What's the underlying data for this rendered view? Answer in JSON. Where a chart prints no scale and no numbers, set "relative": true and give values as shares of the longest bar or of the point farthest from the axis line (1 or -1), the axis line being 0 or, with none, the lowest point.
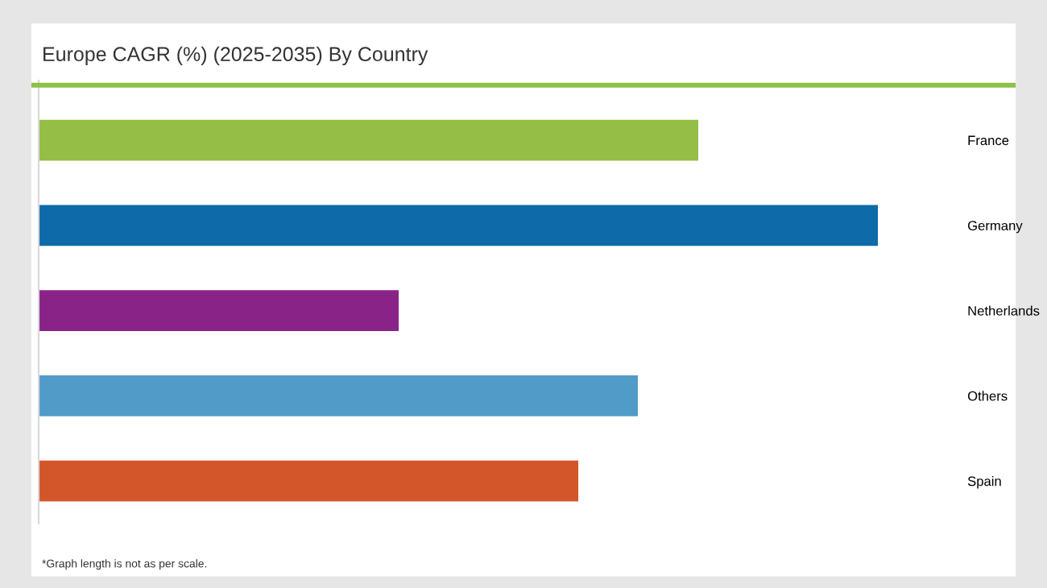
{
  "chart_data": {
    "type": "bar",
    "orientation": "horizontal",
    "relative": true,
    "title": "Europe CAGR (%) (2025-2035) By Country",
    "categories": [
      "France",
      "Germany",
      "Netherlands",
      "Others",
      "Spain"
    ],
    "values": [
      0.786,
      1,
      0.429,
      0.714,
      0.643
    ],
    "colors": [
      "#94be46",
      "#0e6aa8",
      "#8a2387",
      "#519bc8",
      "#d3552a"
    ],
    "annotations": [
      "*Graph length is not as per scale."
    ],
    "grid": false,
    "legend": false
  }
}
